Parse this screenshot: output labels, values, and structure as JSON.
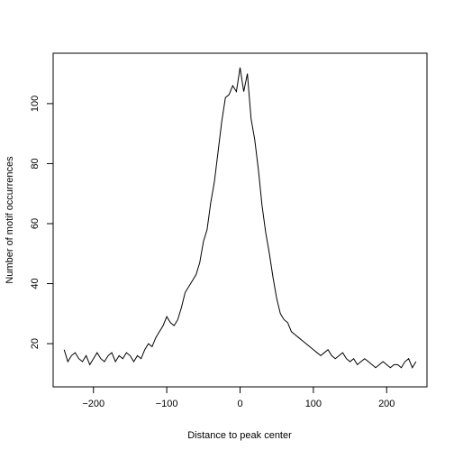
{
  "chart_data": {
    "type": "line",
    "title": "",
    "xlabel": "Distance to peak center",
    "ylabel": "Number of motif occurrences",
    "xlim": [
      -255,
      255
    ],
    "ylim": [
      5.6,
      116.8
    ],
    "xticks": [
      -200,
      -100,
      0,
      100,
      200
    ],
    "yticks": [
      20,
      40,
      60,
      80,
      100
    ],
    "xtick_labels": [
      "−200",
      "−100",
      "0",
      "100",
      "200"
    ],
    "ytick_labels": [
      "20",
      "40",
      "60",
      "80",
      "100"
    ],
    "grid": false,
    "legend": "none",
    "line_color": "#000000",
    "series": [
      {
        "x": [
          -240,
          -235,
          -230,
          -225,
          -220,
          -215,
          -210,
          -205,
          -200,
          -195,
          -190,
          -185,
          -180,
          -175,
          -170,
          -165,
          -160,
          -155,
          -150,
          -145,
          -140,
          -135,
          -130,
          -125,
          -120,
          -115,
          -110,
          -105,
          -100,
          -95,
          -90,
          -85,
          -80,
          -75,
          -70,
          -65,
          -60,
          -55,
          -50,
          -45,
          -40,
          -35,
          -30,
          -25,
          -20,
          -15,
          -10,
          -5,
          0,
          5,
          10,
          15,
          20,
          25,
          30,
          35,
          40,
          45,
          50,
          55,
          60,
          65,
          70,
          75,
          80,
          85,
          90,
          95,
          100,
          105,
          110,
          115,
          120,
          125,
          130,
          135,
          140,
          145,
          150,
          155,
          160,
          165,
          170,
          175,
          180,
          185,
          190,
          195,
          200,
          205,
          210,
          215,
          220,
          225,
          230,
          235,
          240
        ],
        "y": [
          18,
          14,
          16,
          17,
          15,
          14,
          16,
          13,
          15,
          17,
          15,
          14,
          16,
          17,
          14,
          16,
          15,
          17,
          16,
          14,
          16,
          15,
          18,
          20,
          19,
          22,
          24,
          26,
          29,
          27,
          26,
          28,
          32,
          37,
          39,
          41,
          43,
          47,
          54,
          58,
          67,
          74,
          84,
          94,
          102,
          103,
          106,
          104,
          112,
          104,
          110,
          95,
          88,
          78,
          66,
          57,
          50,
          42,
          35,
          30,
          28,
          27,
          24,
          23,
          22,
          21,
          20,
          19,
          18,
          17,
          16,
          17,
          18,
          16,
          15,
          16,
          17,
          15,
          14,
          15,
          13,
          14,
          15,
          14,
          13,
          12,
          13,
          14,
          13,
          12,
          13,
          13,
          12,
          14,
          15,
          12,
          14
        ]
      }
    ]
  }
}
